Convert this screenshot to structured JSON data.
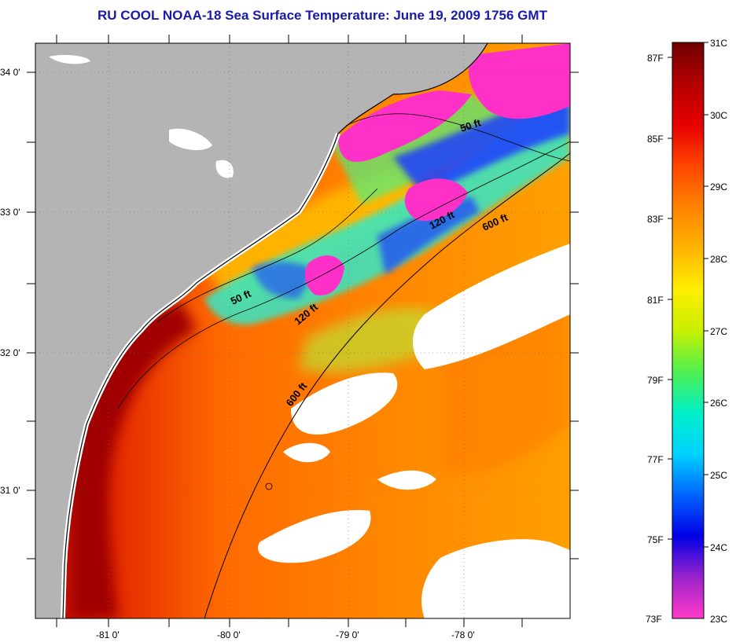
{
  "title": "RU COOL  NOAA-18  Sea Surface Temperature:  June 19, 2009 1756 GMT",
  "map": {
    "lat_labels": [
      "34 0'",
      "33 0'",
      "32 0'",
      "31 0'"
    ],
    "lon_labels": [
      "-81 0'",
      "-80 0'",
      "-79 0'",
      "-78 0'"
    ],
    "contour_labels": [
      "50 ft",
      "50 ft",
      "120 ft",
      "120 ft",
      "600 ft",
      "600 ft"
    ],
    "colors": {
      "land": "#b4b4b4",
      "cloud": "#ffffff",
      "coast": "#000000"
    }
  },
  "colorbar": {
    "fahrenheit_labels": [
      "87F",
      "85F",
      "83F",
      "81F",
      "79F",
      "77F",
      "75F",
      "73F"
    ],
    "celsius_labels": [
      "31C",
      "30C",
      "29C",
      "28C",
      "27C",
      "26C",
      "25C",
      "24C",
      "23C"
    ],
    "scale_colors": [
      "#ff3cc8",
      "#9b22cc",
      "#0000e6",
      "#0064ff",
      "#00d2ff",
      "#00f0c8",
      "#50f050",
      "#c8f000",
      "#ffee00",
      "#ffb400",
      "#ff8200",
      "#ff4600",
      "#e60000",
      "#b40000",
      "#6e0000"
    ]
  }
}
